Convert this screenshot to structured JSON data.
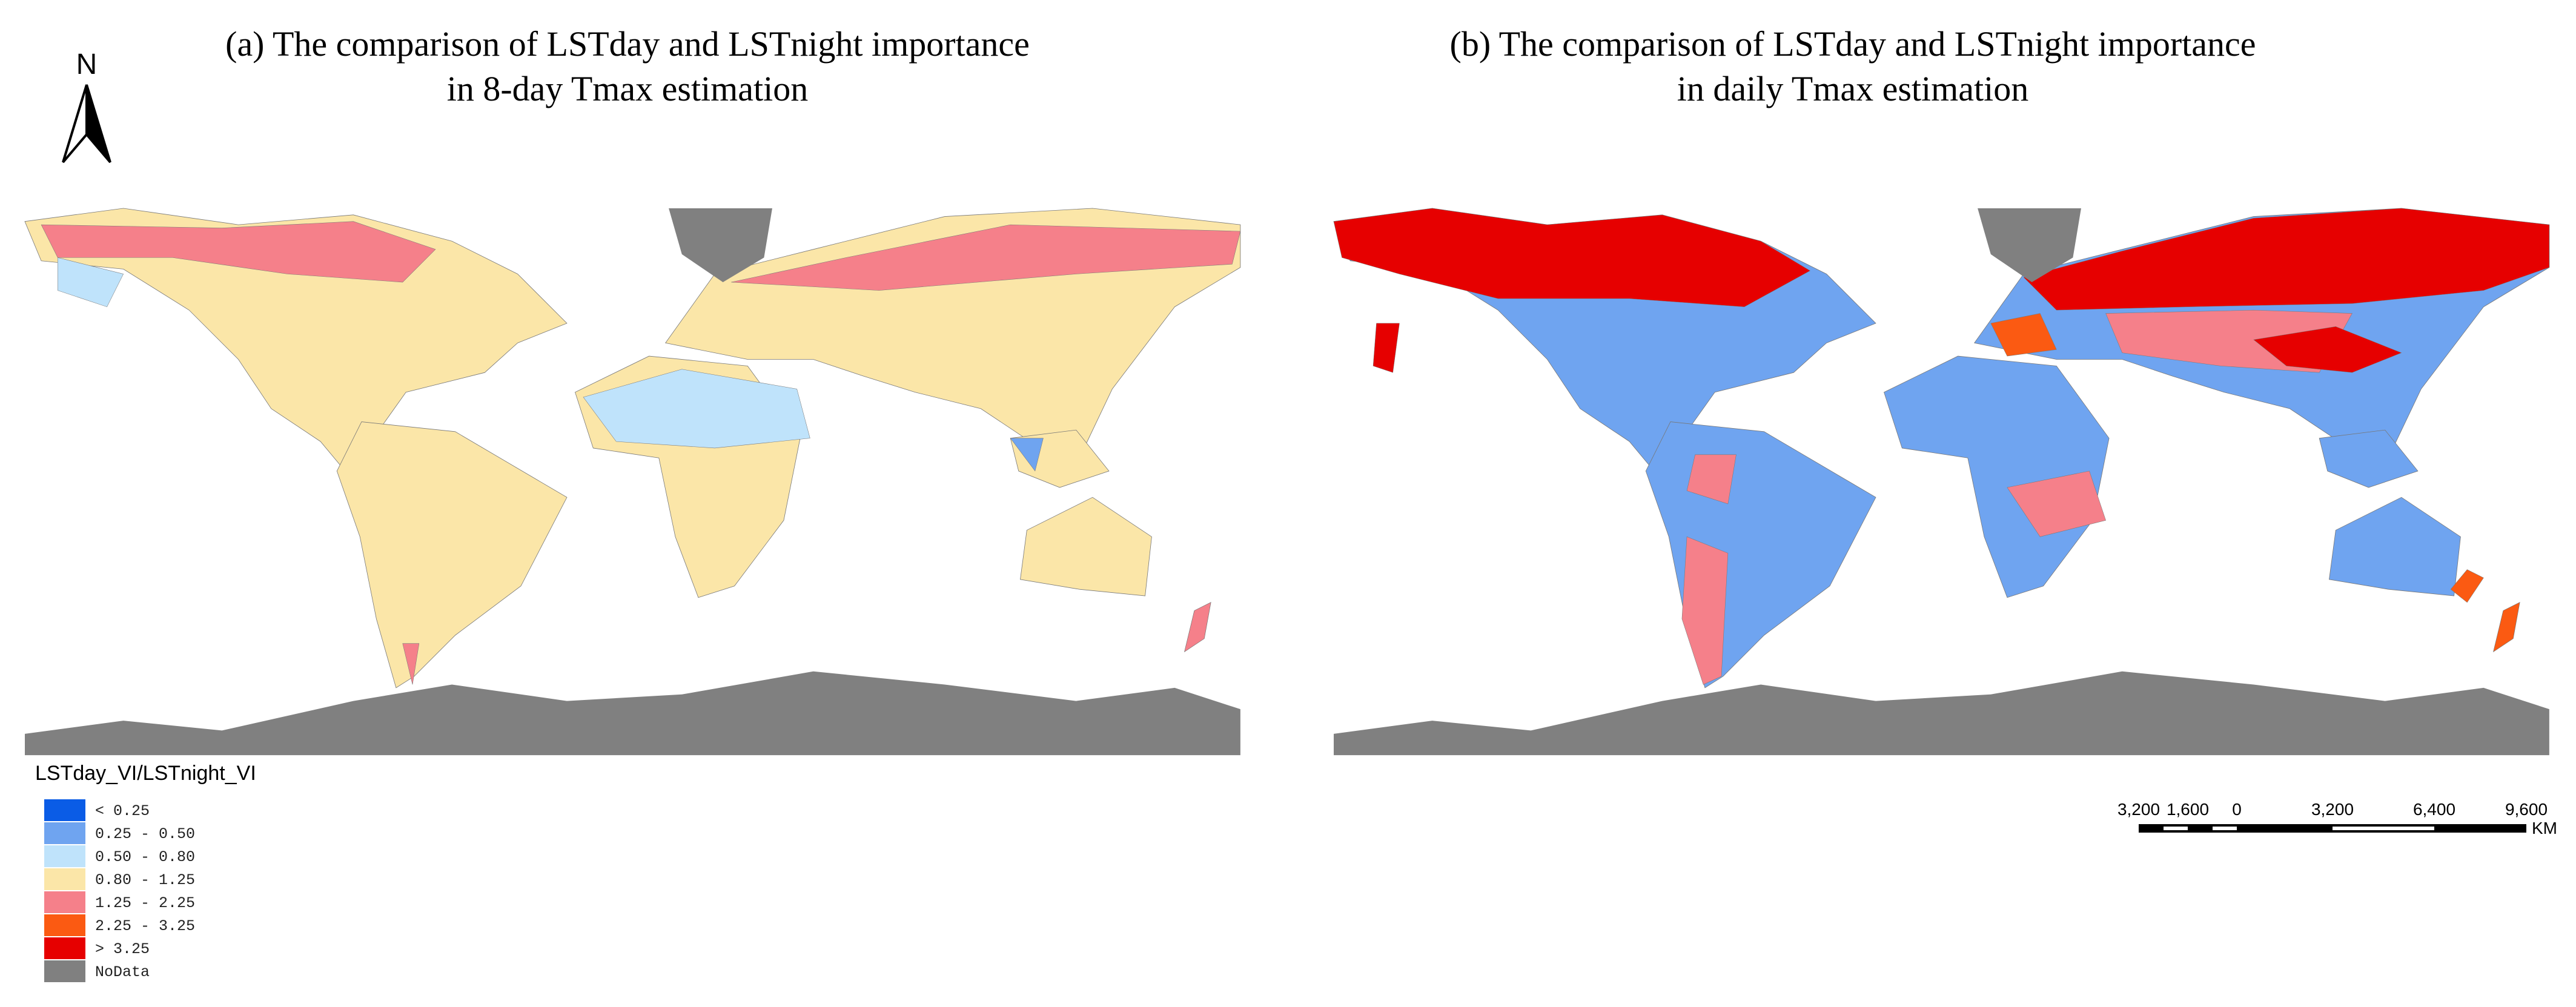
{
  "north_arrow": {
    "label": "N"
  },
  "panels": [
    {
      "title_lines": [
        "(a) The comparison of LSTday and LSTnight importance",
        "in 8-day Tmax estimation"
      ]
    },
    {
      "title_lines": [
        "(b) The comparison of LSTday and LSTnight importance",
        "in daily Tmax estimation"
      ]
    }
  ],
  "legend": {
    "title": "LSTday_VI/LSTnight_VI",
    "items": [
      {
        "label": "< 0.25",
        "color": "#0a5ce6"
      },
      {
        "label": "0.25 - 0.50",
        "color": "#6fa4f0"
      },
      {
        "label": "0.50 - 0.80",
        "color": "#bfe3fb"
      },
      {
        "label": "0.80 - 1.25",
        "color": "#fbe6a8"
      },
      {
        "label": "1.25 - 2.25",
        "color": "#f5808a"
      },
      {
        "label": "2.25 - 3.25",
        "color": "#fb5a12"
      },
      {
        "label": "> 3.25",
        "color": "#e60000"
      },
      {
        "label": "NoData",
        "color": "#808080"
      }
    ]
  },
  "scale_bar": {
    "labels": [
      "3,200",
      "1,600",
      "0",
      "3,200",
      "6,400",
      "9,600"
    ],
    "unit": "KM"
  }
}
